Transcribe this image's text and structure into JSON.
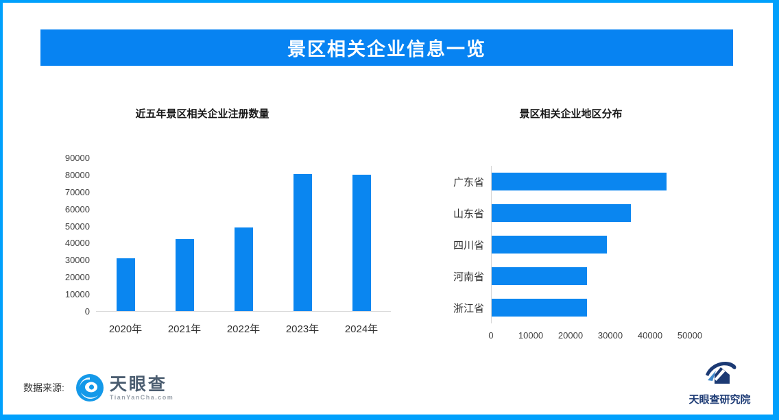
{
  "header": {
    "title": "景区相关企业信息一览"
  },
  "chart_data": [
    {
      "type": "bar",
      "orientation": "vertical",
      "title": "近五年景区相关企业注册数量",
      "categories": [
        "2020年",
        "2021年",
        "2022年",
        "2023年",
        "2024年"
      ],
      "values": [
        31000,
        42000,
        49000,
        80500,
        80000
      ],
      "ylim": [
        0,
        90000
      ],
      "ytick_step": 10000,
      "grid": false,
      "legend": "none",
      "bar_color": "#0A86F0"
    },
    {
      "type": "bar",
      "orientation": "horizontal",
      "title": "景区相关企业地区分布",
      "categories": [
        "广东省",
        "山东省",
        "四川省",
        "河南省",
        "浙江省"
      ],
      "values": [
        44000,
        35000,
        29000,
        24000,
        24000
      ],
      "xlim": [
        0,
        50000
      ],
      "xtick_step": 10000,
      "grid": false,
      "legend": "none",
      "bar_color": "#0A86F0"
    }
  ],
  "footer": {
    "source_label": "数据来源:",
    "source_logo_text": "天眼查",
    "source_logo_subtext": "TianYanCha.com",
    "institute_name": "天眼查研究院"
  },
  "icons": {
    "source_logo": "tianyancha-eye-icon",
    "institute_logo": "tianyancha-institute-icon"
  },
  "colors": {
    "bar_blue": "#0A86F0",
    "banner_blue": "#0783F2",
    "border_blue": "#00A0FC",
    "axis_gray": "#D9D9D9"
  }
}
